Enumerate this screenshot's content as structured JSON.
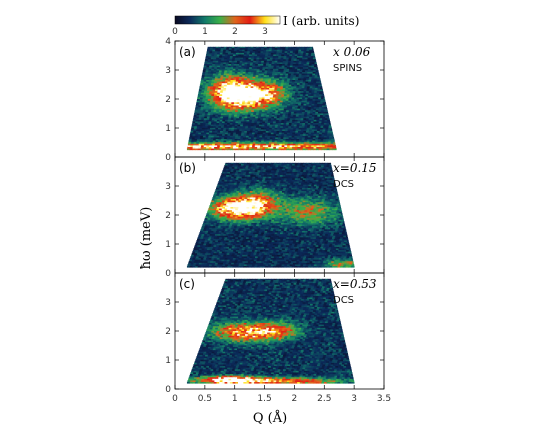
{
  "chart_data": {
    "type": "heatmap",
    "colorbar": {
      "label": "I (arb. units)",
      "ticks": [
        "0",
        "1",
        "2",
        "3"
      ],
      "range": [
        0,
        3.5
      ],
      "colors": [
        "#0a0a22",
        "#0b2a5a",
        "#127a6a",
        "#3bb048",
        "#e0641c",
        "#e21c14",
        "#ffe01a",
        "#ffffff"
      ]
    },
    "xlabel": "Q (Å)",
    "ylabel": "ħω (meV)",
    "xlim": [
      0,
      3.5
    ],
    "ylim": [
      0,
      4
    ],
    "xticks": [
      "0",
      "0.5",
      "1",
      "1.5",
      "2",
      "2.5",
      "3",
      "3.5"
    ],
    "yticks": [
      "0",
      "1",
      "2",
      "3",
      "4"
    ],
    "panels": [
      {
        "tag": "(a)",
        "annotation": "x  0.06",
        "instrument": "SPINS",
        "coverage": {
          "top": 3.8,
          "bottom": 0.25,
          "q_left_top": 0.55,
          "q_right_top": 2.3,
          "q_left_bottom": 0.2,
          "q_right_bottom": 2.7
        },
        "intensity_peaks": [
          {
            "q": 1.1,
            "e": 2.1,
            "amp": 3.2,
            "wq": 0.45,
            "we": 0.45
          },
          {
            "q": 0.9,
            "e": 2.3,
            "amp": 2.0,
            "wq": 0.3,
            "we": 0.5
          },
          {
            "q": 1.5,
            "e": 2.2,
            "amp": 1.6,
            "wq": 0.35,
            "we": 0.4
          },
          {
            "q": 1.0,
            "e": 0.35,
            "amp": 2.8,
            "wq": 2.5,
            "we": 0.12
          }
        ],
        "background": 0.55
      },
      {
        "tag": "(b)",
        "annotation": "x=0.15",
        "instrument": "DCS",
        "coverage": {
          "top": 3.8,
          "bottom": 0.2,
          "q_left_top": 0.85,
          "q_right_top": 2.6,
          "q_left_bottom": 0.2,
          "q_right_bottom": 3.0
        },
        "intensity_peaks": [
          {
            "q": 1.0,
            "e": 2.2,
            "amp": 3.4,
            "wq": 0.4,
            "we": 0.35
          },
          {
            "q": 1.35,
            "e": 2.4,
            "amp": 2.0,
            "wq": 0.35,
            "we": 0.4
          },
          {
            "q": 2.2,
            "e": 2.1,
            "amp": 1.3,
            "wq": 0.5,
            "we": 0.45
          },
          {
            "q": 2.8,
            "e": 0.3,
            "amp": 1.4,
            "wq": 0.3,
            "we": 0.15
          }
        ],
        "background": 0.5
      },
      {
        "tag": "(c)",
        "annotation": "x=0.53",
        "instrument": "DCS",
        "coverage": {
          "top": 3.8,
          "bottom": 0.2,
          "q_left_top": 0.85,
          "q_right_top": 2.6,
          "q_left_bottom": 0.2,
          "q_right_bottom": 3.0
        },
        "intensity_peaks": [
          {
            "q": 1.15,
            "e": 1.95,
            "amp": 2.6,
            "wq": 0.5,
            "we": 0.3
          },
          {
            "q": 1.7,
            "e": 2.0,
            "amp": 1.4,
            "wq": 0.35,
            "we": 0.3
          },
          {
            "q": 0.9,
            "e": 0.3,
            "amp": 3.4,
            "wq": 0.5,
            "we": 0.12
          },
          {
            "q": 1.8,
            "e": 0.25,
            "amp": 2.2,
            "wq": 0.9,
            "we": 0.12
          }
        ],
        "background": 0.55
      }
    ],
    "grid": false,
    "legend": "none"
  }
}
